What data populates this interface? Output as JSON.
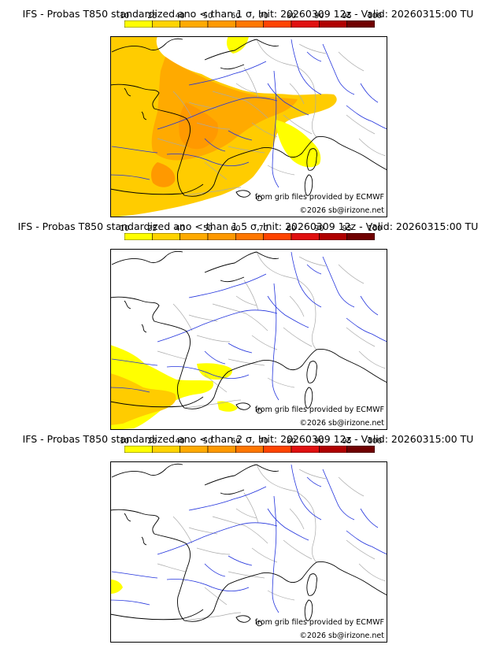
{
  "colorbar": {
    "ticks": [
      "10",
      "25",
      "40",
      "50",
      "60",
      "70",
      "80",
      "90",
      "95",
      "100"
    ],
    "colors": [
      "#ffff00",
      "#ffd400",
      "#ffaa00",
      "#ff9900",
      "#ff7700",
      "#ff4400",
      "#e01010",
      "#b00000",
      "#700000"
    ]
  },
  "panels": [
    {
      "title": "IFS - Probas T850  standardized ano < than 1 σ, Init: 20260309 12z - Valid: 20260315:00 TU",
      "credit": "from grib files provided by ECMWF",
      "copyright": "©2026 sb@irizone.net",
      "coverage": "high"
    },
    {
      "title": "IFS - Probas T850  standardized ano < than 1.5 σ, Init: 20260309 12z - Valid: 20260315:00 TU",
      "credit": "from grib files provided by ECMWF",
      "copyright": "©2026 sb@irizone.net",
      "coverage": "low"
    },
    {
      "title": "IFS - Probas T850  standardized ano < than 2 σ, Init: 20260309 12z - Valid: 20260315:00 TU",
      "credit": "from grib files provided by ECMWF",
      "copyright": "©2026 sb@irizone.net",
      "coverage": "minimal"
    }
  ],
  "colors": {
    "coast": "#000000",
    "rivers": "#2233dd",
    "borders": "#aaaaaa",
    "frame": "#000000"
  }
}
